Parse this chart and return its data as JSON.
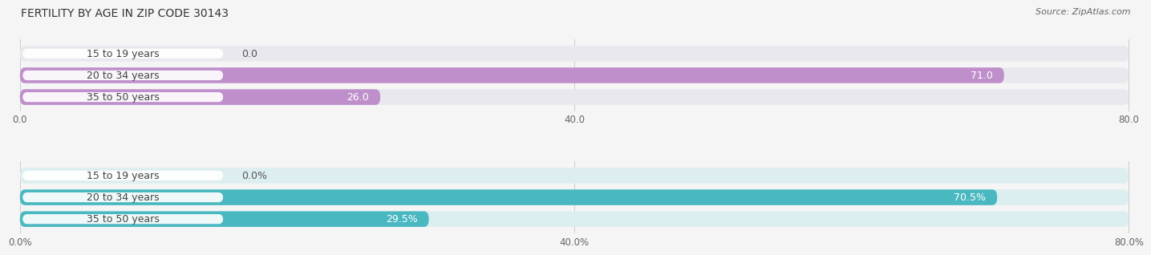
{
  "title": "FERTILITY BY AGE IN ZIP CODE 30143",
  "source": "Source: ZipAtlas.com",
  "top_group": {
    "categories": [
      "15 to 19 years",
      "20 to 34 years",
      "35 to 50 years"
    ],
    "values": [
      0.0,
      71.0,
      26.0
    ],
    "xlim": [
      0,
      80
    ],
    "xticks": [
      0.0,
      40.0,
      80.0
    ],
    "xtick_labels": [
      "0.0",
      "40.0",
      "80.0"
    ],
    "bar_color": "#bf8fcb",
    "bar_bg_color": "#e8e8ee",
    "value_suffix": ""
  },
  "bottom_group": {
    "categories": [
      "15 to 19 years",
      "20 to 34 years",
      "35 to 50 years"
    ],
    "values": [
      0.0,
      70.5,
      29.5
    ],
    "xlim": [
      0,
      80
    ],
    "xticks": [
      0.0,
      40.0,
      80.0
    ],
    "xtick_labels": [
      "0.0%",
      "40.0%",
      "80.0%"
    ],
    "bar_color": "#4ab8c1",
    "bar_bg_color": "#ddeef0",
    "value_suffix": "%"
  },
  "bg_color": "#f5f5f5",
  "title_fontsize": 10,
  "label_fontsize": 9,
  "value_fontsize": 9,
  "tick_fontsize": 8.5,
  "source_fontsize": 8
}
